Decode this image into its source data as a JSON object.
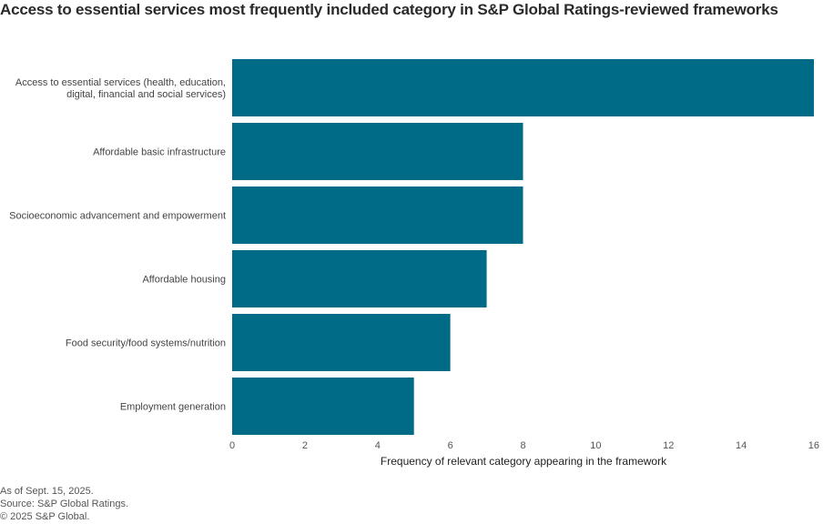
{
  "chart_data": {
    "type": "bar",
    "orientation": "horizontal",
    "title": "Access to essential services most frequently included category in S&P Global Ratings-reviewed frameworks",
    "categories": [
      [
        "Access to essential services (health, education,",
        "digital, financial and social services)"
      ],
      [
        "Affordable basic infrastructure"
      ],
      [
        "Socioeconomic advancement and empowerment"
      ],
      [
        "Affordable housing"
      ],
      [
        "Food security/food systems/nutrition"
      ],
      [
        "Employment generation"
      ]
    ],
    "values": [
      16,
      8,
      8,
      7,
      6,
      5
    ],
    "xlabel": "Frequency of relevant category appearing in the framework",
    "ylabel": "",
    "xlim": [
      0,
      16
    ],
    "xticks": [
      0,
      2,
      4,
      6,
      8,
      10,
      12,
      14,
      16
    ],
    "grid": false,
    "legend": "none",
    "bar_color": "#006b87"
  },
  "footer": {
    "lines": [
      "As of Sept. 15, 2025.",
      "Source: S&P Global Ratings.",
      "© 2025 S&P Global."
    ]
  }
}
